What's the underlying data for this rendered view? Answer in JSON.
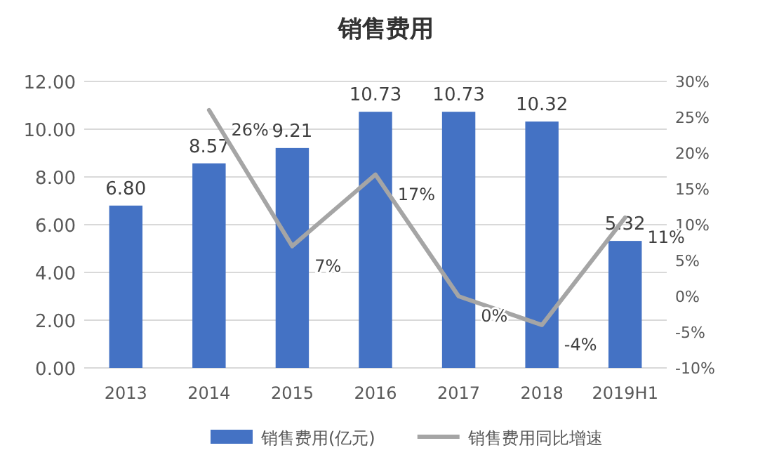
{
  "chart_data": {
    "type": "bar",
    "title": "销售费用",
    "categories": [
      "2013",
      "2014",
      "2015",
      "2016",
      "2017",
      "2018",
      "2019H1"
    ],
    "series": [
      {
        "name": "销售费用(亿元)",
        "color": "#4472c4",
        "values": [
          6.8,
          8.57,
          9.21,
          10.73,
          10.73,
          10.32,
          5.32
        ],
        "value_labels": [
          "6.80",
          "8.57",
          "9.21",
          "10.73",
          "10.73",
          "10.32",
          "5.32"
        ]
      },
      {
        "name": "销售费用同比增速",
        "type": "line",
        "axis": "y2",
        "color": "#a5a5a5",
        "values": [
          null,
          26,
          7,
          17,
          0,
          -4,
          11
        ],
        "value_labels": [
          null,
          "26%",
          "7%",
          "17%",
          "0%",
          "-4%",
          "11%"
        ]
      }
    ],
    "ylim": [
      0,
      12
    ],
    "yticks": [
      {
        "value": 0,
        "label": "0.00"
      },
      {
        "value": 2,
        "label": "2.00"
      },
      {
        "value": 4,
        "label": "4.00"
      },
      {
        "value": 6,
        "label": "6.00"
      },
      {
        "value": 8,
        "label": "8.00"
      },
      {
        "value": 10,
        "label": "10.00"
      },
      {
        "value": 12,
        "label": "12.00"
      }
    ],
    "y2lim": [
      -10,
      30
    ],
    "y2ticks": [
      {
        "value": -10,
        "label": "-10%"
      },
      {
        "value": -5,
        "label": "-5%"
      },
      {
        "value": 0,
        "label": "0%"
      },
      {
        "value": 5,
        "label": "5%"
      },
      {
        "value": 10,
        "label": "10%"
      },
      {
        "value": 15,
        "label": "15%"
      },
      {
        "value": 20,
        "label": "20%"
      },
      {
        "value": 25,
        "label": "25%"
      },
      {
        "value": 30,
        "label": "30%"
      }
    ],
    "grid": "y",
    "legend": "bottom",
    "marker": "none"
  }
}
